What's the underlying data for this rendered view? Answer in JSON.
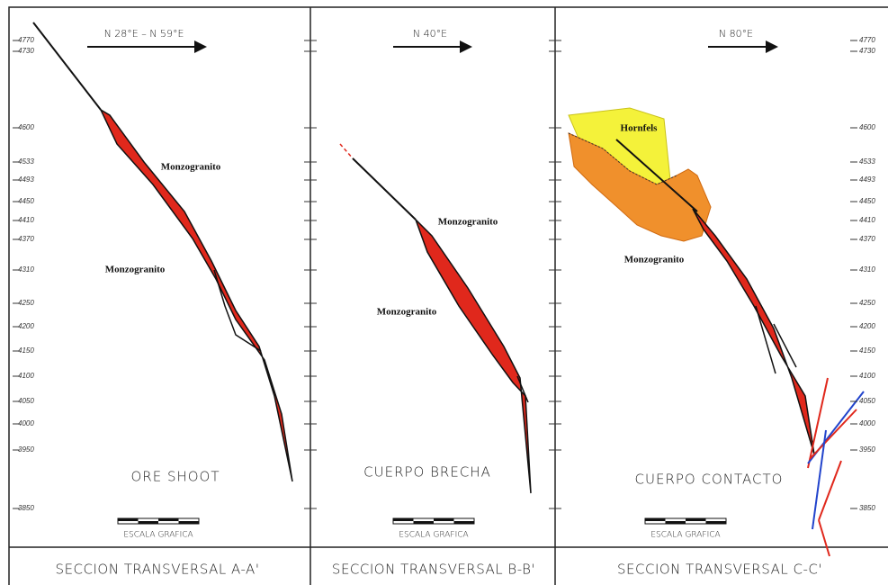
{
  "panels": [
    {
      "direction": "N 28°E – N 59°E",
      "labels": [
        "Monzogranito",
        "Monzogranito"
      ],
      "body": "ORE SHOOT",
      "scale_label": "ESCALA GRAFICA",
      "caption": "SECCION TRANSVERSAL A-A'"
    },
    {
      "direction": "N 40°E",
      "labels": [
        "Monzogranito",
        "Monzogranito"
      ],
      "body": "CUERPO BRECHA",
      "scale_label": "ESCALA GRAFICA",
      "caption": "SECCION TRANSVERSAL B-B'"
    },
    {
      "direction": "N 80°E",
      "labels": [
        "Hornfels",
        "Monzogranito"
      ],
      "body": "CUERPO CONTACTO",
      "scale_label": "ESCALA GRAFICA",
      "caption": "SECCION TRANSVERSAL C-C'"
    }
  ],
  "elevations": [
    "4770",
    "4730",
    "4600",
    "4533",
    "4493",
    "4450",
    "4410",
    "4370",
    "4310",
    "4250",
    "4200",
    "4150",
    "4100",
    "4050",
    "4000",
    "3950",
    "3850"
  ]
}
